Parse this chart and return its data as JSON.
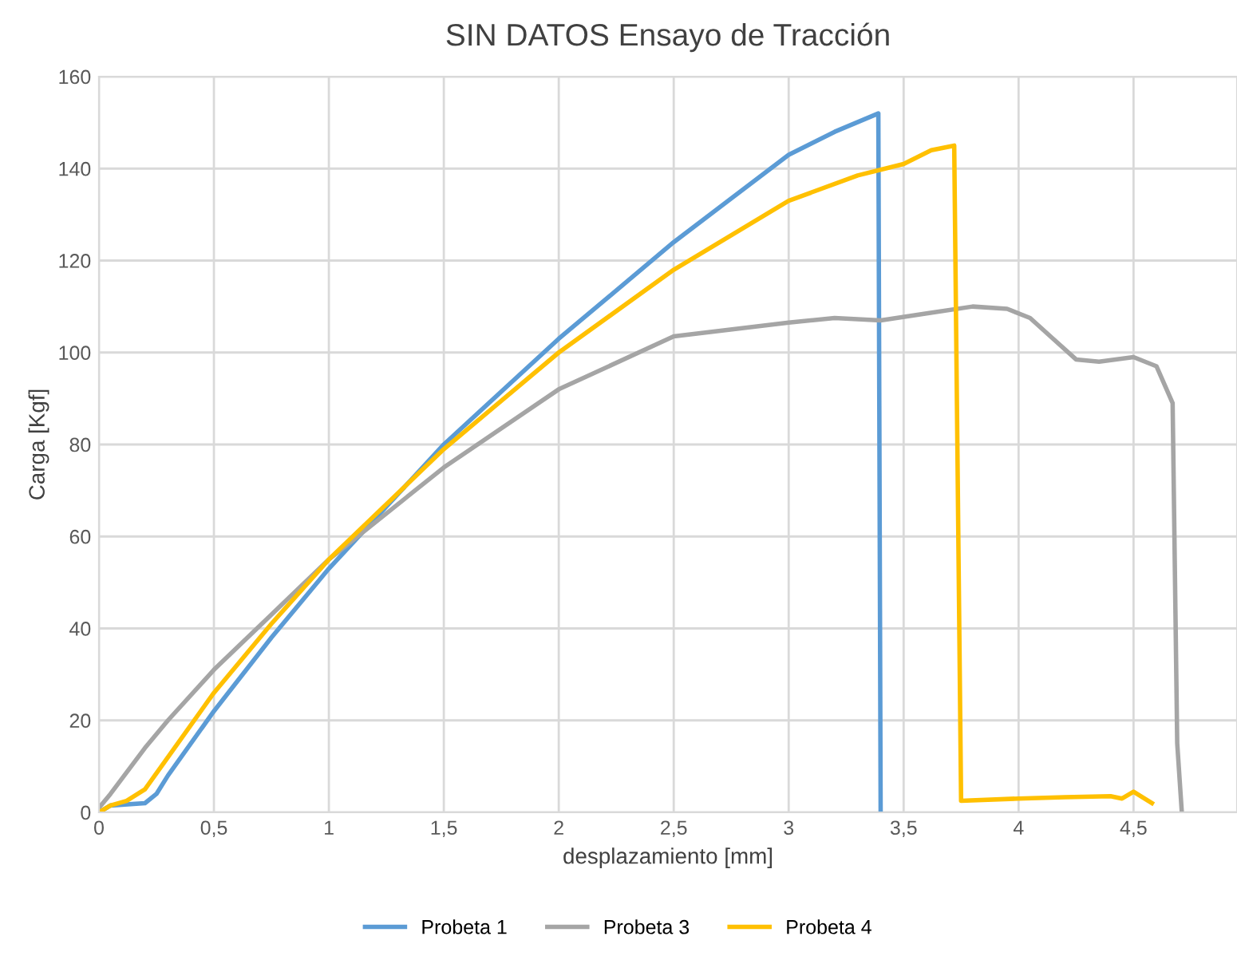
{
  "chart_data": {
    "type": "line",
    "title": "SIN DATOS Ensayo de Tracción",
    "xlabel": "desplazamiento [mm]",
    "ylabel": "Carga [Kgf]",
    "xlim": [
      0,
      4.95
    ],
    "xticks": [
      {
        "value": 0,
        "label": "0"
      },
      {
        "value": 0.5,
        "label": "0,5"
      },
      {
        "value": 1,
        "label": "1"
      },
      {
        "value": 1.5,
        "label": "1,5"
      },
      {
        "value": 2,
        "label": "2"
      },
      {
        "value": 2.5,
        "label": "2,5"
      },
      {
        "value": 3,
        "label": "3"
      },
      {
        "value": 3.5,
        "label": "3,5"
      },
      {
        "value": 4,
        "label": "4"
      },
      {
        "value": 4.5,
        "label": "4,5"
      }
    ],
    "ylim": [
      0,
      160
    ],
    "yticks": [
      0,
      20,
      40,
      60,
      80,
      100,
      120,
      140,
      160
    ],
    "grid": true,
    "legend": "bottom",
    "marker": "none",
    "line_style": "solid",
    "series": [
      {
        "name": "Probeta 1",
        "color": "#5b9bd5",
        "x": [
          0,
          0.05,
          0.2,
          0.25,
          0.3,
          0.5,
          0.75,
          1,
          1.5,
          2,
          2.5,
          3,
          3.2,
          3.39,
          3.4
        ],
        "values": [
          0,
          1.5,
          2,
          4,
          8,
          22,
          38,
          53,
          80,
          103,
          124,
          143,
          148,
          152,
          0
        ]
      },
      {
        "name": "Probeta 3",
        "color": "#a5a5a5",
        "x": [
          0,
          0.05,
          0.2,
          0.3,
          0.5,
          0.75,
          1,
          1.5,
          2,
          2.5,
          3,
          3.2,
          3.4,
          3.6,
          3.8,
          3.95,
          4.05,
          4.15,
          4.25,
          4.35,
          4.5,
          4.6,
          4.67,
          4.69,
          4.71
        ],
        "values": [
          1,
          4,
          14,
          20,
          31,
          43,
          55,
          75,
          92,
          103.5,
          106.5,
          107.5,
          107,
          108.5,
          110,
          109.5,
          107.5,
          103,
          98.5,
          98,
          99,
          97,
          89,
          15,
          0
        ]
      },
      {
        "name": "Probeta 4",
        "color": "#ffc000",
        "x": [
          0,
          0.05,
          0.12,
          0.2,
          0.3,
          0.5,
          0.75,
          1,
          1.5,
          2,
          2.5,
          3,
          3.3,
          3.5,
          3.62,
          3.72,
          3.75,
          4,
          4.2,
          4.4,
          4.45,
          4.5,
          4.58
        ],
        "values": [
          0,
          1.5,
          2.5,
          5,
          12,
          26,
          41,
          55,
          79,
          100,
          118,
          133,
          138.5,
          141,
          144,
          145,
          2.5,
          3,
          3.3,
          3.5,
          3,
          4.5,
          2
        ]
      }
    ]
  }
}
